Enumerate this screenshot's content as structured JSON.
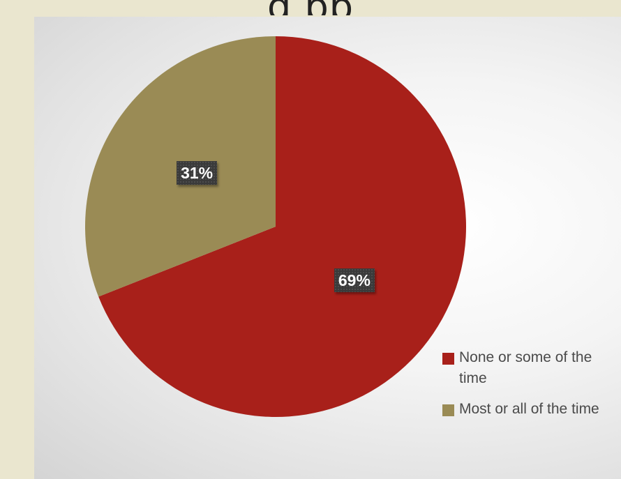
{
  "title_fragment": "g  pp",
  "chart_data": {
    "type": "pie",
    "title": "",
    "categories": [
      "None or some of the time",
      "Most or all of the time"
    ],
    "values": [
      69,
      31
    ],
    "labels": [
      "69%",
      "31%"
    ],
    "colors": [
      "#a8201a",
      "#9a8b55"
    ],
    "legend_position": "bottom-right"
  }
}
